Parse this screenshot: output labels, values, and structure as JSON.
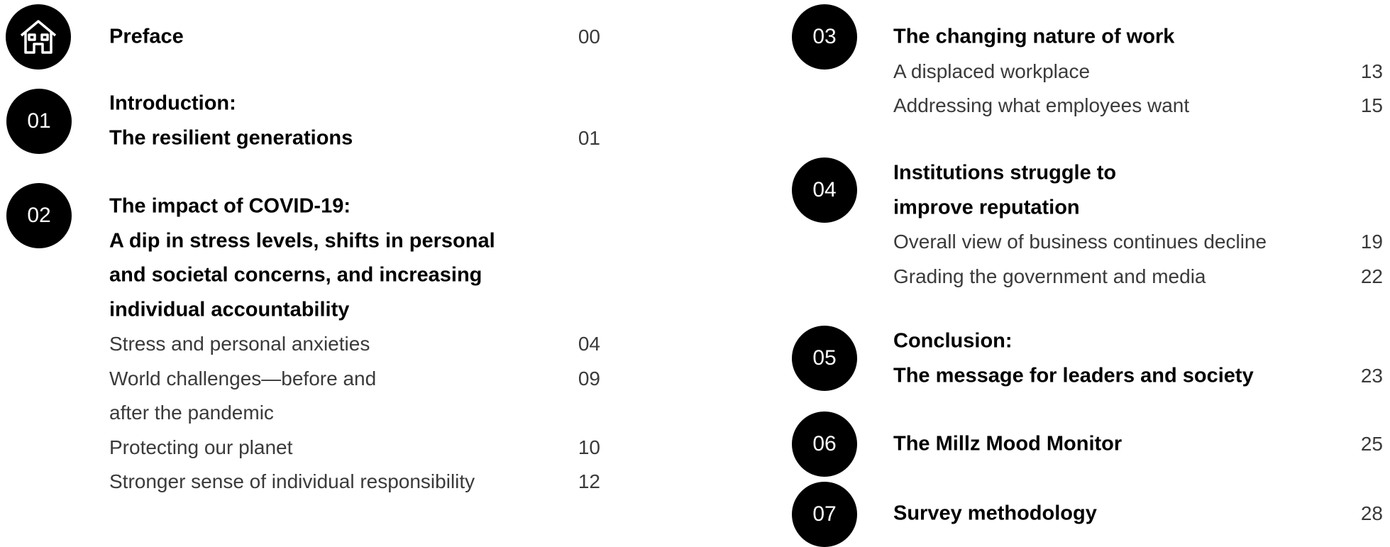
{
  "left": [
    {
      "title": [
        "Preface"
      ],
      "page": "00"
    },
    {
      "number": "01",
      "title": [
        "Introduction:",
        "The resilient generations"
      ],
      "page": "01"
    },
    {
      "number": "02",
      "title": [
        "The impact of COVID-19:",
        "A dip in stress levels, shifts in personal",
        "and societal concerns, and increasing",
        "individual accountability"
      ],
      "items": [
        {
          "label": [
            "Stress and personal anxieties"
          ],
          "page": "04"
        },
        {
          "label": [
            "World challenges—before and",
            "after the pandemic"
          ],
          "page": "09"
        },
        {
          "label": [
            "Protecting our planet"
          ],
          "page": "10"
        },
        {
          "label": [
            "Stronger sense of individual responsibility"
          ],
          "page": "12"
        }
      ]
    }
  ],
  "right": [
    {
      "number": "03",
      "title": [
        "The changing nature of work"
      ],
      "items": [
        {
          "label": [
            "A displaced workplace"
          ],
          "page": "13"
        },
        {
          "label": [
            "Addressing what employees want"
          ],
          "page": "15"
        }
      ]
    },
    {
      "number": "04",
      "title": [
        "Institutions struggle to",
        "improve reputation"
      ],
      "items": [
        {
          "label": [
            "Overall view of business continues decline"
          ],
          "page": "19"
        },
        {
          "label": [
            "Grading the government and media"
          ],
          "page": "22"
        }
      ]
    },
    {
      "number": "05",
      "title": [
        "Conclusion:",
        "The message for leaders and society"
      ],
      "page": "23"
    },
    {
      "number": "06",
      "title": [
        "The Millz Mood Monitor"
      ],
      "page": "25"
    },
    {
      "number": "07",
      "title": [
        "Survey methodology"
      ],
      "page": "28"
    }
  ]
}
